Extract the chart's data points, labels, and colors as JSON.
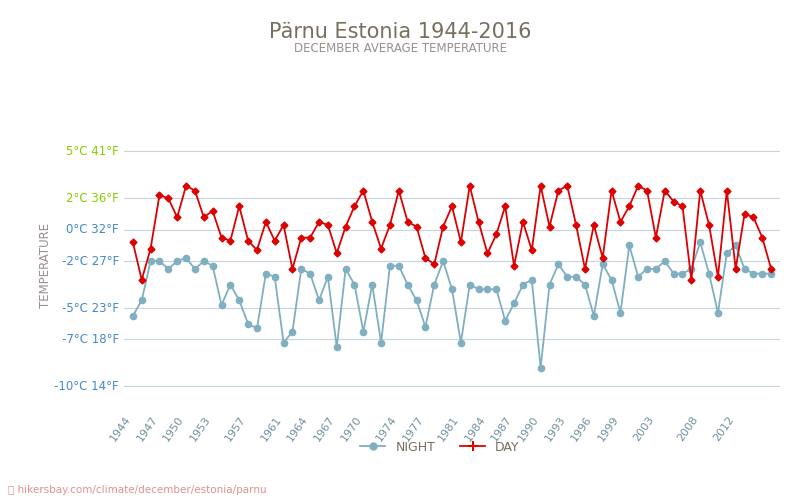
{
  "title": "Pärnu Estonia 1944-2016",
  "subtitle": "DECEMBER AVERAGE TEMPERATURE",
  "ylabel": "TEMPERATURE",
  "url_text": "hikersbay.com/climate/december/estonia/parnu",
  "ylim": [
    -11.5,
    7.0
  ],
  "yticks_c": [
    5,
    2,
    0,
    -2,
    -5,
    -7,
    -10
  ],
  "yticks_f": [
    41,
    36,
    32,
    27,
    23,
    18,
    14
  ],
  "ytick_green_count": 2,
  "years": [
    1944,
    1945,
    1946,
    1947,
    1948,
    1949,
    1950,
    1951,
    1952,
    1953,
    1954,
    1955,
    1956,
    1957,
    1958,
    1959,
    1960,
    1961,
    1962,
    1963,
    1964,
    1965,
    1966,
    1967,
    1968,
    1969,
    1970,
    1971,
    1972,
    1973,
    1974,
    1975,
    1976,
    1977,
    1978,
    1979,
    1980,
    1981,
    1982,
    1983,
    1984,
    1985,
    1986,
    1987,
    1988,
    1989,
    1990,
    1991,
    1992,
    1993,
    1994,
    1995,
    1996,
    1997,
    1998,
    1999,
    2000,
    2001,
    2002,
    2003,
    2004,
    2005,
    2006,
    2007,
    2008,
    2009,
    2010,
    2011,
    2012,
    2013,
    2014,
    2015,
    2016
  ],
  "day": [
    -0.8,
    -3.2,
    -1.2,
    2.2,
    2.0,
    0.8,
    2.8,
    2.5,
    0.8,
    1.2,
    -0.5,
    -0.7,
    1.5,
    -0.7,
    -1.3,
    0.5,
    -0.7,
    0.3,
    -2.5,
    -0.5,
    -0.5,
    0.5,
    0.3,
    -1.5,
    0.2,
    1.5,
    2.5,
    0.5,
    -1.2,
    0.3,
    2.5,
    0.5,
    0.2,
    -1.8,
    -2.2,
    0.2,
    1.5,
    -0.8,
    2.8,
    0.5,
    -1.5,
    -0.3,
    1.5,
    -2.3,
    0.5,
    -1.3,
    2.8,
    0.2,
    2.5,
    2.8,
    0.3,
    -2.5,
    0.3,
    -1.8,
    2.5,
    0.5,
    1.5,
    2.8,
    2.5,
    -0.5,
    2.5,
    1.8,
    1.5,
    -3.2,
    2.5,
    0.3,
    -3.0,
    2.5,
    -2.5,
    1.0,
    0.8,
    -0.5,
    -2.5
  ],
  "night": [
    -5.5,
    -4.5,
    -2.0,
    -2.0,
    -2.5,
    -2.0,
    -1.8,
    -2.5,
    -2.0,
    -2.3,
    -4.8,
    -3.5,
    -4.5,
    -6.0,
    -6.3,
    -2.8,
    -3.0,
    -7.2,
    -6.5,
    -2.5,
    -2.8,
    -4.5,
    -3.0,
    -7.5,
    -2.5,
    -3.5,
    -6.5,
    -3.5,
    -7.2,
    -2.3,
    -2.3,
    -3.5,
    -4.5,
    -6.2,
    -3.5,
    -2.0,
    -3.8,
    -7.2,
    -3.5,
    -3.8,
    -3.8,
    -3.8,
    -5.8,
    -4.7,
    -3.5,
    -3.2,
    -8.8,
    -3.5,
    -2.2,
    -3.0,
    -3.0,
    -3.5,
    -5.5,
    -2.2,
    -3.2,
    -5.3,
    -1.0,
    -3.0,
    -2.5,
    -2.5,
    -2.0,
    -2.8,
    -2.8,
    -2.5,
    -0.8,
    -2.8,
    -5.3,
    -1.5,
    -1.0,
    -2.5,
    -2.8,
    -2.8,
    -2.8
  ],
  "day_color": "#dd0000",
  "night_color": "#7fafc0",
  "bg_color": "#ffffff",
  "grid_color": "#c8d4dc",
  "title_color": "#777060",
  "subtitle_color": "#999090",
  "ylabel_color": "#999090",
  "ytick_color_green": "#88cc00",
  "ytick_color_blue": "#4488cc",
  "xtick_color": "#7090a0",
  "xtick_years": [
    1944,
    1947,
    1950,
    1953,
    1957,
    1961,
    1964,
    1967,
    1970,
    1974,
    1977,
    1981,
    1984,
    1987,
    1990,
    1993,
    1996,
    1999,
    2003,
    2008,
    2012
  ],
  "xlim": [
    1943.0,
    2017.0
  ]
}
